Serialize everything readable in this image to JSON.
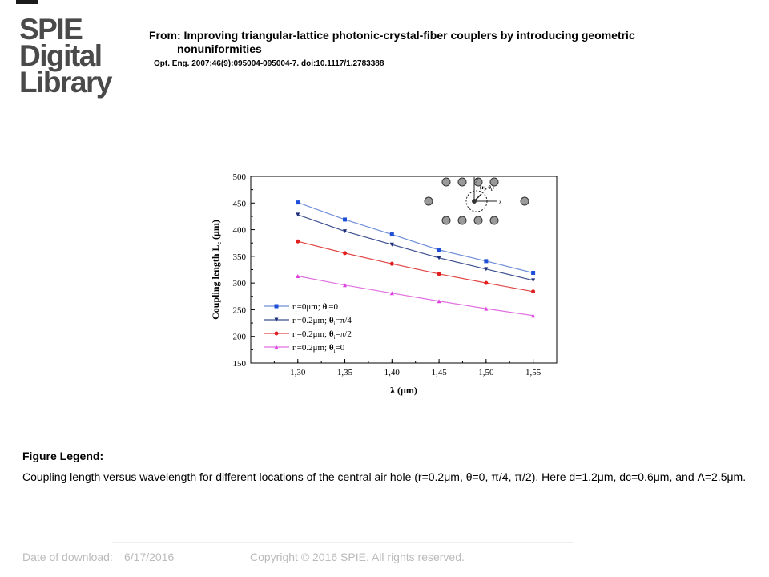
{
  "header": {
    "logo_lines": [
      "SPIE",
      "Digital",
      "Library"
    ],
    "from_line1": "From: Improving triangular-lattice photonic-crystal-fiber couplers by introducing geometric",
    "from_line2": "nonuniformities",
    "citation": "Opt. Eng. 2007;46(9):095004-095004-7. doi:10.1117/1.2783388"
  },
  "chart_data": {
    "type": "line",
    "xlabel": "λ (μm)",
    "ylabel": "Coupling length L",
    "ylabel_sub": "c",
    "ylabel_unit": " (μm)",
    "x": [
      1.3,
      1.35,
      1.4,
      1.45,
      1.5,
      1.55
    ],
    "x_tick_labels": [
      "1,30",
      "1,35",
      "1,40",
      "1,45",
      "1,50",
      "1,55"
    ],
    "xlim": [
      1.25,
      1.575
    ],
    "ylim": [
      150,
      500
    ],
    "y_ticks": [
      150,
      200,
      250,
      300,
      350,
      400,
      450,
      500
    ],
    "grid": false,
    "legend_position": "bottom-left",
    "series": [
      {
        "name": "r=0μm; θ=0",
        "legend": {
          "a": "r",
          "b": "=0μm; ",
          "c": "θ",
          "d": "=0"
        },
        "marker": "square",
        "color": "#1f4fd8",
        "line_color": "#6f8fd8",
        "values": [
          451,
          419,
          391,
          362,
          341,
          319
        ]
      },
      {
        "name": "r=0.2μm; θ=π/4",
        "legend": {
          "a": "r",
          "b": "=0.2μm; ",
          "c": "θ",
          "d": "=π/4"
        },
        "marker": "triangle-down",
        "color": "#1c2f7a",
        "line_color": "#3d4f8f",
        "values": [
          428,
          397,
          372,
          347,
          326,
          305
        ]
      },
      {
        "name": "r=0.2μm; θ=π/2",
        "legend": {
          "a": "r",
          "b": "=0.2μm; ",
          "c": "θ",
          "d": "=π/2"
        },
        "marker": "circle",
        "color": "#e02020",
        "line_color": "#e04848",
        "values": [
          378,
          356,
          336,
          317,
          300,
          284
        ]
      },
      {
        "name": "r=0.2μm; θ=0",
        "legend": {
          "a": "r",
          "b": "=0.2μm; ",
          "c": "θ",
          "d": "=0"
        },
        "marker": "triangle-up",
        "color": "#e040e0",
        "line_color": "#e070e0",
        "values": [
          313,
          296,
          281,
          266,
          252,
          239
        ]
      }
    ],
    "inset": {
      "labels": {
        "y": "y",
        "x": "x",
        "coords": "(r",
        "coords_sub": "i",
        "coords_sep": ", θ",
        "coords_sub2": "i",
        "coords_end": ")"
      }
    }
  },
  "legend": {
    "title": "Figure Legend:",
    "text": "Coupling length versus wavelength for different locations of the central air hole (r=0.2μm, θ=0, π/4, π/2). Here d=1.2μm, dc=0.6μm, and Λ=2.5μm."
  },
  "footer": {
    "date_label": "Date of download:",
    "date_value": "6/17/2016",
    "copyright": "Copyright © 2016 SPIE. All rights reserved."
  }
}
